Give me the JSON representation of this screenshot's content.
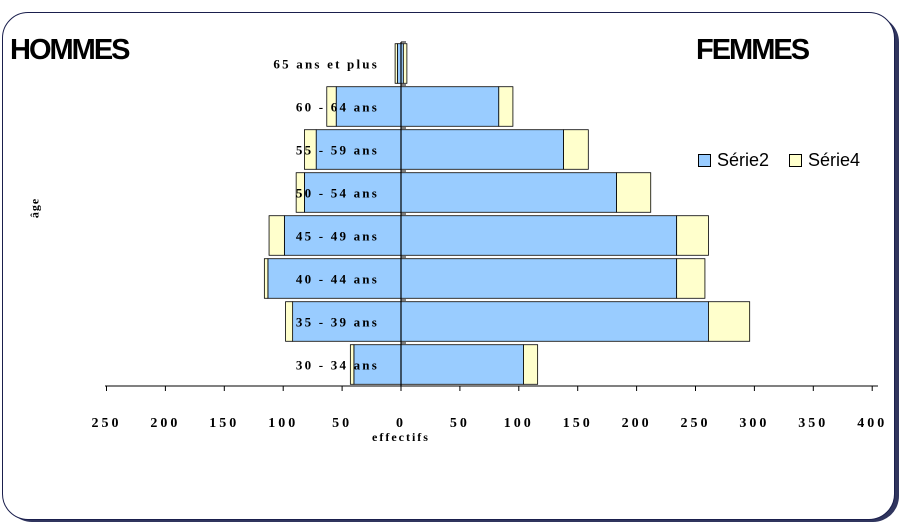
{
  "header": {
    "left_title": "HOMMES",
    "right_title": "FEMMES"
  },
  "chart_data": {
    "type": "bar",
    "orientation": "horizontal-population-pyramid",
    "categories": [
      "30 - 34 ans",
      "35 - 39 ans",
      "40 - 44 ans",
      "45 - 49 ans",
      "50 - 54 ans",
      "55 - 59 ans",
      "60 - 64 ans",
      "65 ans et plus"
    ],
    "hommes": {
      "series": [
        {
          "name": "Série2",
          "values": [
            40,
            92,
            113,
            99,
            82,
            72,
            55,
            3
          ]
        },
        {
          "name": "Série4",
          "values": [
            3,
            6,
            3,
            13,
            7,
            10,
            8,
            2
          ]
        }
      ]
    },
    "femmes": {
      "series": [
        {
          "name": "Série2",
          "values": [
            104,
            261,
            234,
            234,
            183,
            138,
            83,
            2
          ]
        },
        {
          "name": "Série4",
          "values": [
            12,
            35,
            24,
            27,
            29,
            21,
            12,
            3
          ]
        }
      ]
    },
    "colors": {
      "Série2": "#99ccff",
      "Série4": "#ffffcc"
    },
    "x_ticks": [
      "250",
      "200",
      "150",
      "100",
      "50",
      "0",
      "50",
      "100",
      "150",
      "200",
      "250",
      "300",
      "350",
      "400"
    ],
    "xlabel": "effectifs",
    "ylabel": "âge",
    "xlim": [
      -250,
      400
    ],
    "legend_position": "right",
    "legend": [
      "Série2",
      "Série4"
    ]
  }
}
